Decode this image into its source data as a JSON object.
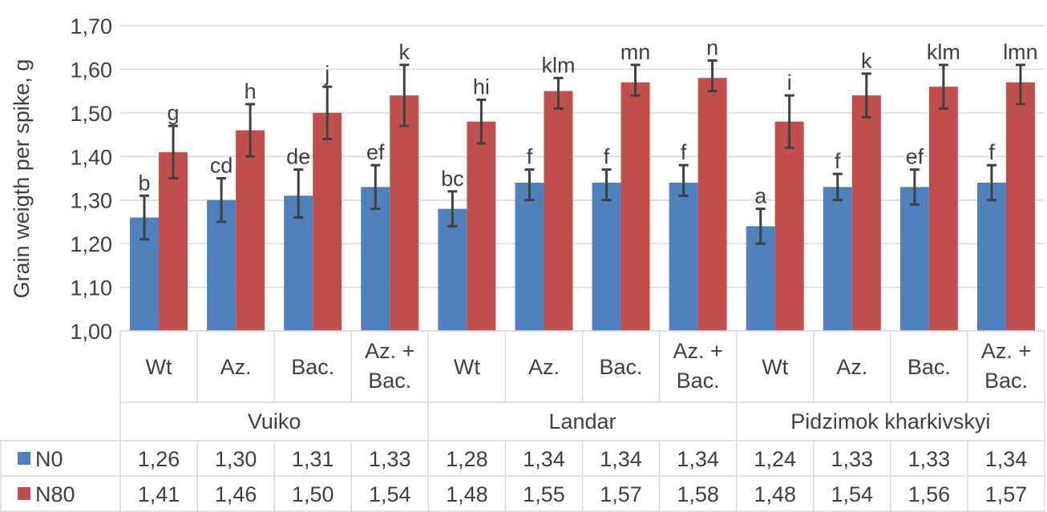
{
  "chart_data": {
    "type": "bar",
    "ylabel": "Grain weigth per spike, g",
    "ylim": [
      1.0,
      1.7
    ],
    "yticks": [
      "1,00",
      "1,10",
      "1,20",
      "1,30",
      "1,40",
      "1,50",
      "1,60",
      "1,70"
    ],
    "grid": true,
    "categories": [
      "Wt",
      "Az.",
      "Bac.",
      "Az. + Bac.",
      "Wt",
      "Az.",
      "Bac.",
      "Az. + Bac.",
      "Wt",
      "Az.",
      "Bac.",
      "Az. + Bac."
    ],
    "category_lines": [
      [
        "Wt"
      ],
      [
        "Az."
      ],
      [
        "Bac."
      ],
      [
        "Az. +",
        "Bac."
      ],
      [
        "Wt"
      ],
      [
        "Az."
      ],
      [
        "Bac."
      ],
      [
        "Az. +",
        "Bac."
      ],
      [
        "Wt"
      ],
      [
        "Az."
      ],
      [
        "Bac."
      ],
      [
        "Az. +",
        "Bac."
      ]
    ],
    "groups": [
      {
        "name": "Vuiko",
        "start": 0,
        "count": 4
      },
      {
        "name": "Landar",
        "start": 4,
        "count": 4
      },
      {
        "name": "Pidzimok kharkivskyi",
        "start": 8,
        "count": 4
      }
    ],
    "series": [
      {
        "name": "N0",
        "color": "#4f81bd",
        "values": [
          1.26,
          1.3,
          1.31,
          1.33,
          1.28,
          1.34,
          1.34,
          1.34,
          1.24,
          1.33,
          1.33,
          1.34
        ],
        "error_low": [
          1.21,
          1.25,
          1.26,
          1.28,
          1.24,
          1.3,
          1.3,
          1.31,
          1.2,
          1.3,
          1.29,
          1.3
        ],
        "error_high": [
          1.31,
          1.35,
          1.37,
          1.38,
          1.32,
          1.37,
          1.37,
          1.38,
          1.28,
          1.36,
          1.37,
          1.38
        ],
        "letters": [
          "b",
          "cd",
          "de",
          "ef",
          "bc",
          "f",
          "f",
          "f",
          "a",
          "f",
          "ef",
          "f"
        ],
        "table_values": [
          "1,26",
          "1,30",
          "1,31",
          "1,33",
          "1,28",
          "1,34",
          "1,34",
          "1,34",
          "1,24",
          "1,33",
          "1,33",
          "1,34"
        ]
      },
      {
        "name": "N80",
        "color": "#c0504d",
        "values": [
          1.41,
          1.46,
          1.5,
          1.54,
          1.48,
          1.55,
          1.57,
          1.58,
          1.48,
          1.54,
          1.56,
          1.57
        ],
        "error_low": [
          1.35,
          1.4,
          1.44,
          1.47,
          1.43,
          1.51,
          1.54,
          1.55,
          1.42,
          1.49,
          1.51,
          1.52
        ],
        "error_high": [
          1.47,
          1.52,
          1.56,
          1.61,
          1.53,
          1.58,
          1.61,
          1.62,
          1.54,
          1.59,
          1.61,
          1.61
        ],
        "letters": [
          "g",
          "h",
          "j",
          "k",
          "hi",
          "klm",
          "mn",
          "n",
          "i",
          "k",
          "klm",
          "lmn"
        ],
        "table_values": [
          "1,41",
          "1,46",
          "1,50",
          "1,54",
          "1,48",
          "1,55",
          "1,57",
          "1,58",
          "1,48",
          "1,54",
          "1,56",
          "1,57"
        ]
      }
    ]
  }
}
